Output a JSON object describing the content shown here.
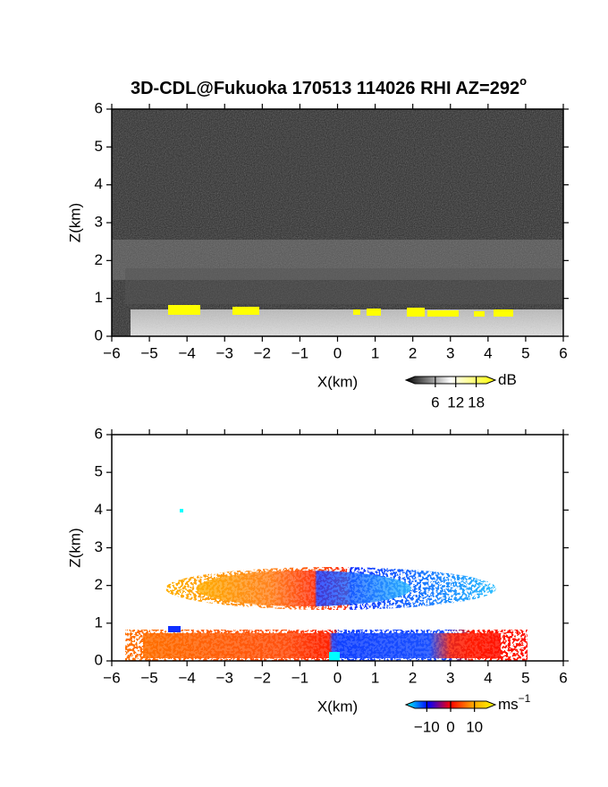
{
  "chart_data": [
    {
      "type": "rhi",
      "title": "3D-CDL@Fukuoka 170513 114026 RHI AZ=292",
      "title_superscript": "o",
      "x_label": "X(km)",
      "y_label": "Z(km)",
      "xlim": [
        -6,
        6
      ],
      "ylim": [
        0,
        6
      ],
      "xticks": [
        {
          "value": -6,
          "label": "−6"
        },
        {
          "value": -5,
          "label": "−5"
        },
        {
          "value": -4,
          "label": "−4"
        },
        {
          "value": -3,
          "label": "−3"
        },
        {
          "value": -2,
          "label": "−2"
        },
        {
          "value": -1,
          "label": "−1"
        },
        0,
        1,
        2,
        3,
        4,
        5,
        6
      ],
      "yticks": [
        0,
        1,
        2,
        3,
        4,
        5,
        6
      ],
      "colorbar": {
        "unit": "dB",
        "clim": [
          0,
          21
        ],
        "ticks": [
          6,
          12,
          18
        ],
        "colors": [
          "#000000",
          "#ffffff",
          "#ffff00"
        ]
      }
    },
    {
      "type": "rhi",
      "x_label": "X(km)",
      "y_label": "Z(km)",
      "xlim": [
        -6,
        6
      ],
      "ylim": [
        0,
        6
      ],
      "xticks": [
        {
          "value": -6,
          "label": "−6"
        },
        {
          "value": -5,
          "label": "−5"
        },
        {
          "value": -4,
          "label": "−4"
        },
        {
          "value": -3,
          "label": "−3"
        },
        {
          "value": -2,
          "label": "−2"
        },
        {
          "value": -1,
          "label": "−1"
        },
        0,
        1,
        2,
        3,
        4,
        5,
        6
      ],
      "yticks": [
        0,
        1,
        2,
        3,
        4,
        5,
        6
      ],
      "colorbar": {
        "unit": "ms",
        "unit_superscript": "−1",
        "clim": [
          -15,
          15
        ],
        "ticks": [
          {
            "value": -10,
            "label": "−10"
          },
          0,
          10
        ],
        "colors": [
          "#00ffff",
          "#0000ff",
          "#ff0000",
          "#ffa500",
          "#ffff00"
        ]
      }
    }
  ]
}
